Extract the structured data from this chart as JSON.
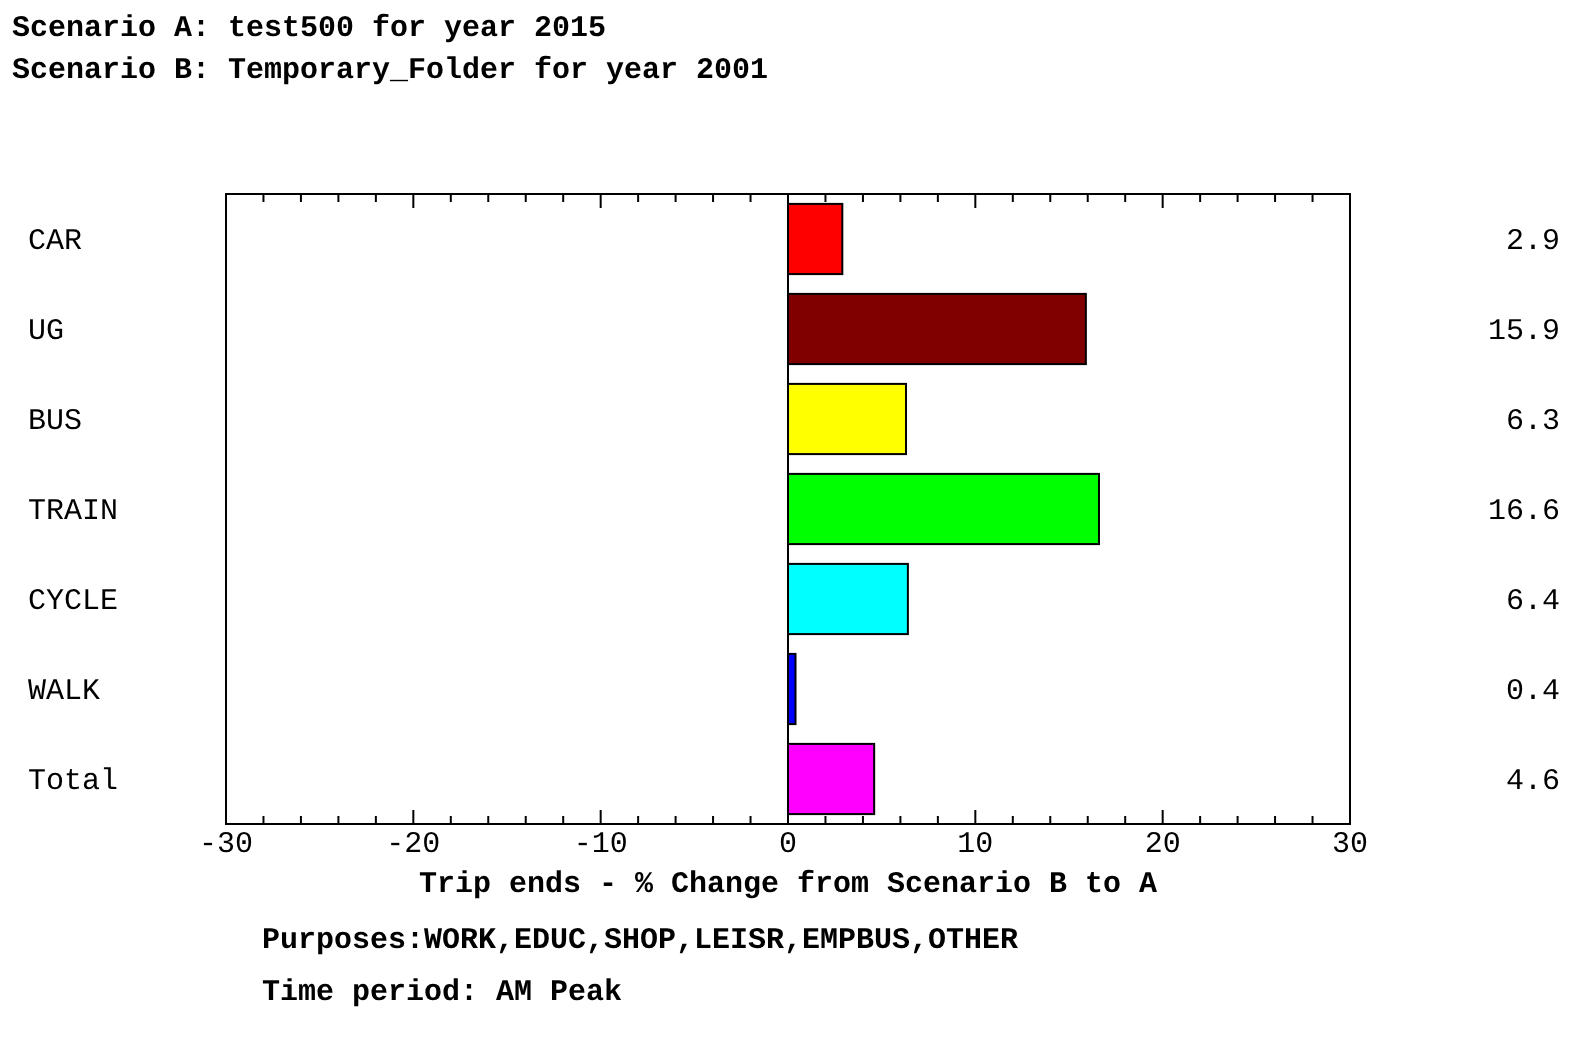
{
  "chart_data": {
    "type": "bar",
    "orientation": "horizontal",
    "title": "Scenario A: test500 for year 2015",
    "subtitle": "Scenario B: Temporary_Folder for year 2001",
    "categories": [
      "CAR",
      "UG",
      "BUS",
      "TRAIN",
      "CYCLE",
      "WALK",
      "Total"
    ],
    "values": [
      2.9,
      15.9,
      6.3,
      16.6,
      6.4,
      0.4,
      4.6
    ],
    "colors": [
      "#ff0000",
      "#800000",
      "#ffff00",
      "#00ff00",
      "#00ffff",
      "#0000ff",
      "#ff00ff"
    ],
    "xlim": [
      -30,
      30
    ],
    "xticks": [
      -30,
      {
        "value": -28,
        "label": null
      },
      {
        "value": -26,
        "label": null
      },
      {
        "value": -24,
        "label": null
      },
      {
        "value": -22,
        "label": null
      },
      -20,
      {
        "value": -18,
        "label": null
      },
      {
        "value": -16,
        "label": null
      },
      {
        "value": -14,
        "label": null
      },
      {
        "value": -12,
        "label": null
      },
      -10,
      {
        "value": -8,
        "label": null
      },
      {
        "value": -6,
        "label": null
      },
      {
        "value": -4,
        "label": null
      },
      {
        "value": -2,
        "label": null
      },
      0,
      {
        "value": 2,
        "label": null
      },
      {
        "value": 4,
        "label": null
      },
      {
        "value": 6,
        "label": null
      },
      {
        "value": 8,
        "label": null
      },
      10,
      {
        "value": 12,
        "label": null
      },
      {
        "value": 14,
        "label": null
      },
      {
        "value": 16,
        "label": null
      },
      {
        "value": 18,
        "label": null
      },
      20,
      {
        "value": 22,
        "label": null
      },
      {
        "value": 24,
        "label": null
      },
      {
        "value": 26,
        "label": null
      },
      {
        "value": 28,
        "label": null
      },
      30
    ],
    "xlabel": "Trip ends - % Change from Scenario B to A",
    "annotations": [
      "Purposes:WORK,EDUC,SHOP,LEISR,EMPBUS,OTHER",
      "Time period: AM Peak"
    ],
    "data_labels": true
  }
}
